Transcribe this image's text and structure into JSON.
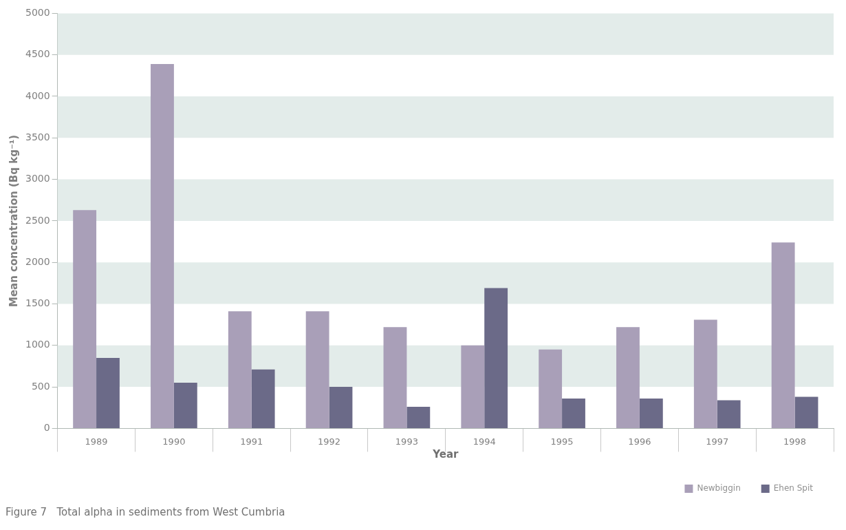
{
  "chart_data": {
    "type": "bar",
    "title": "Figure 7   Total alpha in sediments from West Cumbria",
    "xlabel": "Year",
    "ylabel": "Mean concentration (Bq kg⁻¹)",
    "categories": [
      "1989",
      "1990",
      "1991",
      "1992",
      "1993",
      "1994",
      "1995",
      "1996",
      "1997",
      "1998"
    ],
    "series": [
      {
        "name": "Newbiggin",
        "color": "#a99fb8",
        "values": [
          2630,
          4390,
          1410,
          1410,
          1220,
          1000,
          950,
          1220,
          1310,
          2240
        ]
      },
      {
        "name": "Ehen Spit",
        "color": "#6b6a88",
        "values": [
          850,
          550,
          710,
          500,
          260,
          1690,
          360,
          360,
          340,
          380
        ]
      }
    ],
    "ylim": [
      0,
      5000
    ],
    "yticks": [
      0,
      500,
      1000,
      1500,
      2000,
      2500,
      3000,
      3500,
      4000,
      4500,
      5000
    ],
    "bands": [
      {
        "axis": "y",
        "from": 500,
        "to": 1000,
        "color": "#e3ecea"
      },
      {
        "axis": "y",
        "from": 1500,
        "to": 2000,
        "color": "#e3ecea"
      },
      {
        "axis": "y",
        "from": 2500,
        "to": 3000,
        "color": "#e3ecea"
      },
      {
        "axis": "y",
        "from": 3500,
        "to": 4000,
        "color": "#e3ecea"
      },
      {
        "axis": "y",
        "from": 4500,
        "to": 5000,
        "color": "#e3ecea"
      }
    ],
    "legend": "bottom right"
  }
}
